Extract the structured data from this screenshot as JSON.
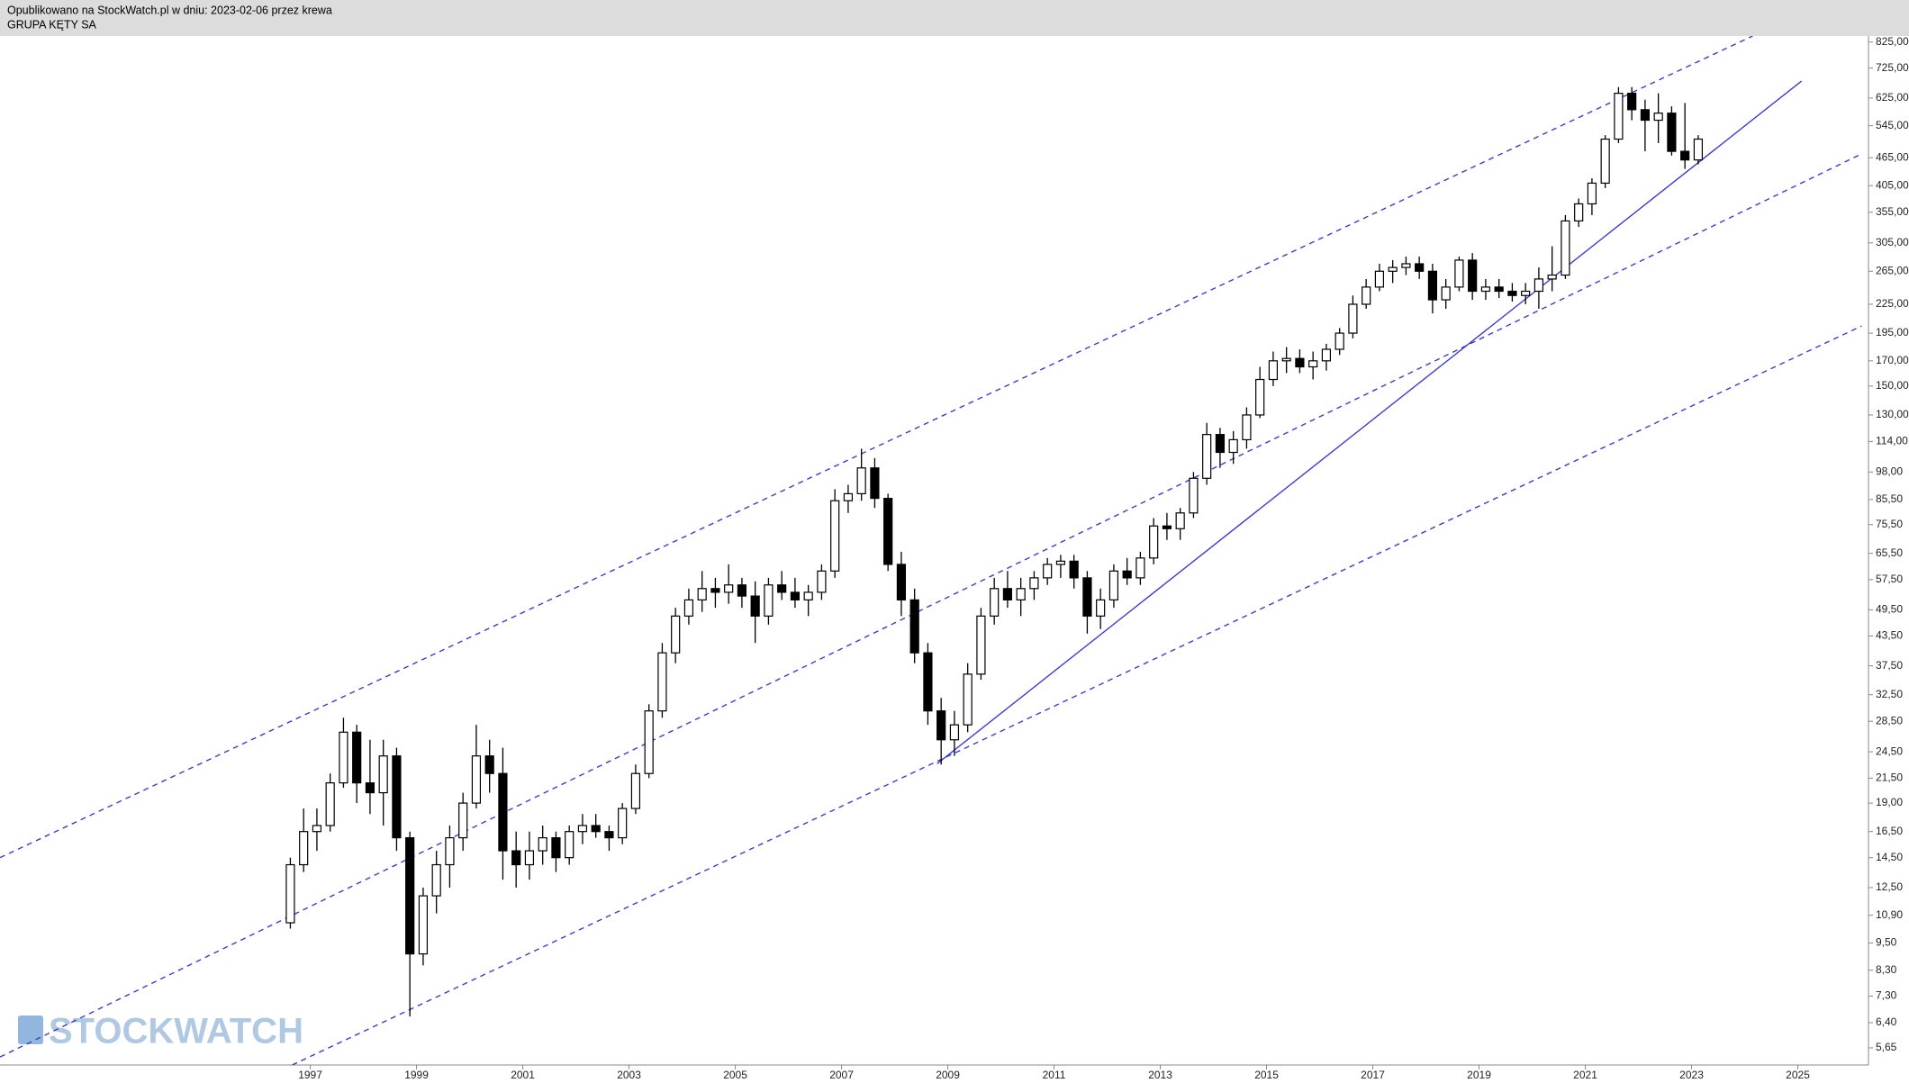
{
  "header": {
    "line1": "Opublikowano na StockWatch.pl w dniu: 2023-02-06 przez krewa",
    "line2": "GRUPA KĘTY SA"
  },
  "chart_data": {
    "type": "candlestick",
    "log_scale": true,
    "watermark": "STOCKWATCH",
    "up_color": "#ffffff",
    "down_color": "#000000",
    "line_color": "#000000",
    "xlim": [
      1991.16,
      2026.33
    ],
    "ylim": [
      5.19,
      850
    ],
    "xticks": [
      1997,
      1999,
      2001,
      2003,
      2005,
      2007,
      2009,
      2011,
      2013,
      2015,
      2017,
      2019,
      2021,
      2023,
      2025
    ],
    "yticks": [
      {
        "value": 825,
        "label": "825,00"
      },
      {
        "value": 725,
        "label": "725,00"
      },
      {
        "value": 625,
        "label": "625,00"
      },
      {
        "value": 545,
        "label": "545,00"
      },
      {
        "value": 465,
        "label": "465,00"
      },
      {
        "value": 405,
        "label": "405,00"
      },
      {
        "value": 355,
        "label": "355,00"
      },
      {
        "value": 305,
        "label": "305,00"
      },
      {
        "value": 265,
        "label": "265,00"
      },
      {
        "value": 225,
        "label": "225,00"
      },
      {
        "value": 195,
        "label": "195,00"
      },
      {
        "value": 170,
        "label": "170,00"
      },
      {
        "value": 150,
        "label": "150,00"
      },
      {
        "value": 130,
        "label": "130,00"
      },
      {
        "value": 114,
        "label": "114,00"
      },
      {
        "value": 98,
        "label": "98,00"
      },
      {
        "value": 85.5,
        "label": "85,50"
      },
      {
        "value": 75.5,
        "label": "75,50"
      },
      {
        "value": 65.5,
        "label": "65,50"
      },
      {
        "value": 57.5,
        "label": "57,50"
      },
      {
        "value": 49.5,
        "label": "49,50"
      },
      {
        "value": 43.5,
        "label": "43,50"
      },
      {
        "value": 37.5,
        "label": "37,50"
      },
      {
        "value": 32.5,
        "label": "32,50"
      },
      {
        "value": 28.5,
        "label": "28,50"
      },
      {
        "value": 24.5,
        "label": "24,50"
      },
      {
        "value": 21.5,
        "label": "21,50"
      },
      {
        "value": 19,
        "label": "19,00"
      },
      {
        "value": 16.5,
        "label": "16,50"
      },
      {
        "value": 14.5,
        "label": "14,50"
      },
      {
        "value": 12.5,
        "label": "12,50"
      },
      {
        "value": 10.9,
        "label": "10,90"
      },
      {
        "value": 9.5,
        "label": "9,50"
      },
      {
        "value": 8.3,
        "label": "8,30"
      },
      {
        "value": 7.3,
        "label": "7,30"
      },
      {
        "value": 6.4,
        "label": "6,40"
      },
      {
        "value": 5.65,
        "label": "5,65"
      }
    ],
    "x": [
      1996.625,
      1996.875,
      1997.125,
      1997.375,
      1997.625,
      1997.875,
      1998.125,
      1998.375,
      1998.625,
      1998.875,
      1999.125,
      1999.375,
      1999.625,
      1999.875,
      2000.125,
      2000.375,
      2000.625,
      2000.875,
      2001.125,
      2001.375,
      2001.625,
      2001.875,
      2002.125,
      2002.375,
      2002.625,
      2002.875,
      2003.125,
      2003.375,
      2003.625,
      2003.875,
      2004.125,
      2004.375,
      2004.625,
      2004.875,
      2005.125,
      2005.375,
      2005.625,
      2005.875,
      2006.125,
      2006.375,
      2006.625,
      2006.875,
      2007.125,
      2007.375,
      2007.625,
      2007.875,
      2008.125,
      2008.375,
      2008.625,
      2008.875,
      2009.125,
      2009.375,
      2009.625,
      2009.875,
      2010.125,
      2010.375,
      2010.625,
      2010.875,
      2011.125,
      2011.375,
      2011.625,
      2011.875,
      2012.125,
      2012.375,
      2012.625,
      2012.875,
      2013.125,
      2013.375,
      2013.625,
      2013.875,
      2014.125,
      2014.375,
      2014.625,
      2014.875,
      2015.125,
      2015.375,
      2015.625,
      2015.875,
      2016.125,
      2016.375,
      2016.625,
      2016.875,
      2017.125,
      2017.375,
      2017.625,
      2017.875,
      2018.125,
      2018.375,
      2018.625,
      2018.875,
      2019.125,
      2019.375,
      2019.625,
      2019.875,
      2020.125,
      2020.375,
      2020.625,
      2020.875,
      2021.125,
      2021.375,
      2021.625,
      2021.875,
      2022.125,
      2022.375,
      2022.625,
      2022.875,
      2023.125
    ],
    "open": [
      10.5,
      14,
      16.5,
      17,
      21,
      27,
      21,
      20,
      24,
      16,
      9,
      12,
      14,
      16,
      19,
      24,
      22,
      15,
      14,
      15,
      16,
      14.5,
      16.5,
      17,
      16.5,
      16,
      18.5,
      22,
      30,
      40,
      48,
      52,
      55,
      54,
      56,
      53,
      48,
      56,
      54,
      52,
      54,
      60,
      85,
      88,
      100,
      86,
      62,
      52,
      40,
      30,
      26,
      28,
      36,
      48,
      55,
      52,
      55,
      58,
      62,
      63,
      58,
      48,
      52,
      60,
      58,
      64,
      75,
      74,
      80,
      95,
      118,
      108,
      115,
      130,
      155,
      170,
      172,
      165,
      170,
      180,
      195,
      225,
      245,
      265,
      270,
      275,
      265,
      230,
      245,
      280,
      240,
      245,
      240,
      235,
      240,
      255,
      260,
      340,
      370,
      410,
      510,
      640,
      590,
      560,
      580,
      480,
      460
    ],
    "high": [
      14.5,
      18.5,
      18.5,
      22,
      29,
      28,
      26,
      26,
      25,
      16.5,
      12.5,
      15,
      17,
      20,
      28,
      26,
      25,
      16.5,
      16.5,
      17,
      16.5,
      17,
      18,
      18,
      17,
      19,
      23,
      31,
      42,
      50,
      55,
      60,
      58,
      62,
      58,
      57,
      58,
      60,
      58,
      56,
      62,
      90,
      92,
      110,
      105,
      88,
      66,
      55,
      42,
      32,
      30,
      38,
      50,
      58,
      60,
      58,
      60,
      64,
      65,
      65,
      60,
      55,
      62,
      64,
      66,
      78,
      80,
      82,
      98,
      125,
      122,
      120,
      135,
      165,
      178,
      182,
      180,
      178,
      185,
      200,
      235,
      255,
      275,
      280,
      285,
      285,
      275,
      255,
      285,
      290,
      255,
      255,
      250,
      250,
      270,
      300,
      350,
      380,
      420,
      520,
      660,
      660,
      620,
      640,
      600,
      610,
      520
    ],
    "low": [
      10.2,
      13.5,
      15,
      16.5,
      20.5,
      19,
      18,
      17,
      15,
      6.6,
      8.5,
      11,
      12.5,
      15,
      18.5,
      20,
      13,
      12.5,
      13,
      14,
      13.5,
      14,
      15.5,
      16,
      15,
      15.5,
      18,
      21.5,
      29,
      38,
      46,
      49,
      50,
      51,
      50,
      42,
      46,
      52,
      50,
      48,
      52,
      58,
      80,
      85,
      82,
      60,
      48,
      38,
      28,
      23,
      24,
      27,
      35,
      46,
      50,
      48,
      52,
      56,
      58,
      55,
      44,
      45,
      50,
      56,
      56,
      62,
      70,
      70,
      78,
      92,
      100,
      102,
      110,
      128,
      150,
      160,
      160,
      155,
      162,
      175,
      190,
      220,
      240,
      250,
      260,
      255,
      215,
      220,
      240,
      230,
      230,
      232,
      228,
      225,
      220,
      240,
      255,
      330,
      350,
      400,
      500,
      560,
      480,
      500,
      470,
      440,
      450
    ],
    "close": [
      14,
      16.5,
      17,
      21,
      27,
      21,
      20,
      24,
      16,
      9,
      12,
      14,
      16,
      19,
      24,
      22,
      15,
      14,
      15,
      16,
      14.5,
      16.5,
      17,
      16.5,
      16,
      18.5,
      22,
      30,
      40,
      48,
      52,
      55,
      54,
      56,
      53,
      48,
      56,
      54,
      52,
      54,
      60,
      85,
      88,
      100,
      86,
      62,
      52,
      40,
      30,
      26,
      28,
      36,
      48,
      55,
      52,
      55,
      58,
      62,
      63,
      58,
      48,
      52,
      60,
      58,
      64,
      75,
      74,
      80,
      95,
      118,
      108,
      115,
      130,
      155,
      170,
      172,
      165,
      170,
      180,
      195,
      225,
      245,
      265,
      270,
      275,
      265,
      230,
      245,
      280,
      240,
      245,
      240,
      235,
      240,
      255,
      260,
      340,
      370,
      410,
      510,
      640,
      590,
      560,
      580,
      480,
      460,
      510
    ],
    "trendlines": [
      {
        "style": "dashed",
        "color": "#3c3cd2",
        "x": [
          1991.16,
          2024.15
        ],
        "y": [
          14.5,
          850
        ]
      },
      {
        "style": "dashed",
        "color": "#3c3cd2",
        "x": [
          1991.16,
          2026.2
        ],
        "y": [
          5.4,
          474
        ]
      },
      {
        "style": "dashed",
        "color": "#3c3cd2",
        "x": [
          1996.66,
          2026.2
        ],
        "y": [
          5.19,
          202
        ]
      },
      {
        "style": "solid",
        "color": "#3c3cd2",
        "x": [
          2008.8,
          2025.07
        ],
        "y": [
          23.1,
          680
        ]
      }
    ]
  }
}
